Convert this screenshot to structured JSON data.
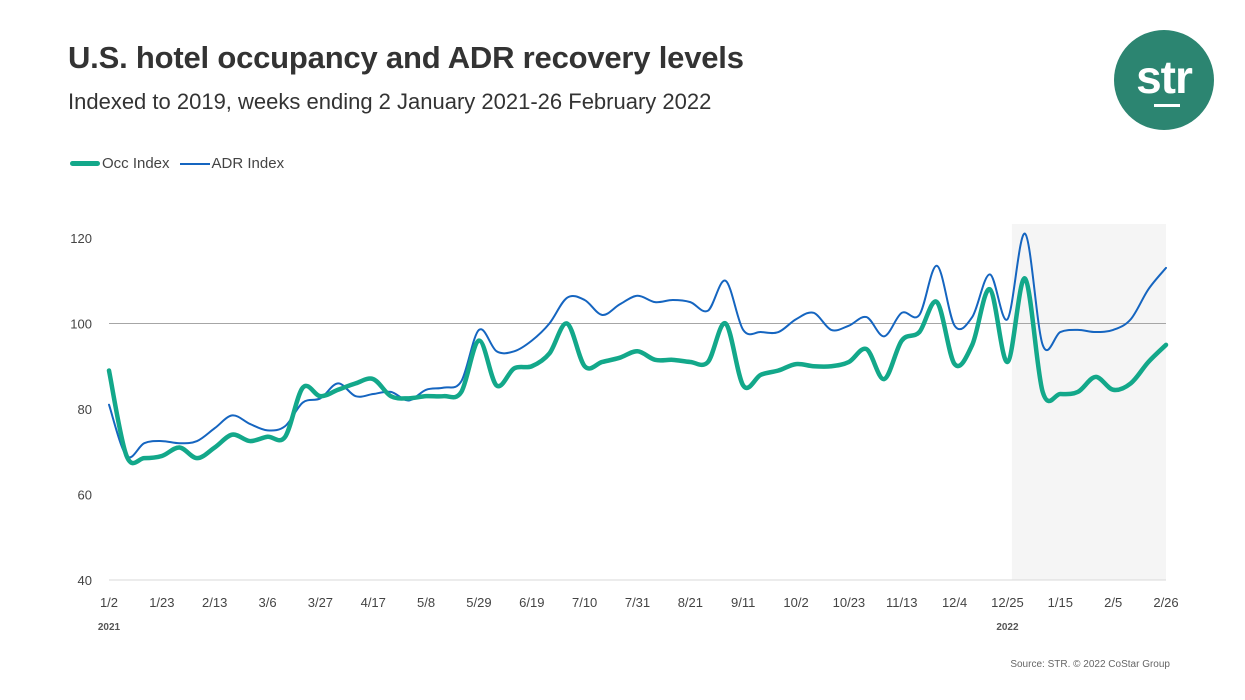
{
  "header": {
    "title": "U.S. hotel occupancy and ADR recovery levels",
    "subtitle": "Indexed to 2019, weeks ending 2 January 2021-26 February 2022"
  },
  "logo": {
    "text": "str",
    "color": "#2c8571"
  },
  "source": "Source: STR. © 2022 CoStar Group",
  "chart_data": {
    "type": "line",
    "title": "U.S. hotel occupancy and ADR recovery levels",
    "subtitle": "Indexed to 2019, weeks ending 2 January 2021-26 February 2022",
    "x_tick_labels": [
      "1/2",
      "1/23",
      "2/13",
      "3/6",
      "3/27",
      "4/17",
      "5/8",
      "5/29",
      "6/19",
      "7/10",
      "7/31",
      "8/21",
      "9/11",
      "10/2",
      "10/23",
      "11/13",
      "12/4",
      "12/25",
      "1/15",
      "2/5",
      "2/26"
    ],
    "year_labels": [
      {
        "label": "2021",
        "at": "1/2"
      },
      {
        "label": "2022",
        "at": "12/25"
      }
    ],
    "x_range": [
      "2021-01-02",
      "2022-02-26"
    ],
    "x_interval": "weekly",
    "y_ticks": [
      40,
      60,
      80,
      100,
      120
    ],
    "ylim": [
      40,
      125
    ],
    "reference_line": 100,
    "shaded_region": {
      "from": "2021-12-25",
      "to": "2022-02-26",
      "color": "#f5f5f5"
    },
    "legend_position": "top-left",
    "grid": false,
    "series": [
      {
        "name": "Occ Index",
        "color": "#13a88a",
        "values": [
          89,
          69,
          68.5,
          69,
          71,
          68.5,
          71,
          74,
          72.5,
          73.5,
          73.5,
          85,
          83,
          84.5,
          86,
          87,
          83,
          82.5,
          83,
          83,
          84,
          96,
          85.5,
          89.5,
          90,
          93,
          100,
          90,
          91,
          92,
          93.5,
          91.5,
          91.5,
          91,
          91,
          100,
          85.5,
          88,
          89,
          90.5,
          90,
          90,
          91,
          94,
          87,
          96,
          98,
          105,
          90.5,
          95,
          108,
          91,
          110.5,
          84,
          83.5,
          84,
          87.5,
          84.5,
          86,
          91,
          95
        ]
      },
      {
        "name": "ADR Index",
        "color": "#1565c0",
        "values": [
          81,
          69,
          72,
          72.5,
          72,
          72.5,
          75.5,
          78.5,
          76.5,
          75,
          76,
          81.5,
          82.5,
          86,
          83,
          83.5,
          84,
          82,
          84.5,
          85,
          86.5,
          98.5,
          93.5,
          93.5,
          96,
          100,
          106,
          105.5,
          102,
          104.5,
          106.5,
          105,
          105.5,
          105,
          103,
          110,
          98.5,
          98,
          98,
          101,
          102.5,
          98.5,
          99.5,
          101.5,
          97,
          102.5,
          102,
          113.5,
          99.5,
          101.5,
          111.5,
          101,
          121,
          95,
          98,
          98.5,
          98,
          98.5,
          101,
          108,
          113
        ]
      }
    ]
  }
}
